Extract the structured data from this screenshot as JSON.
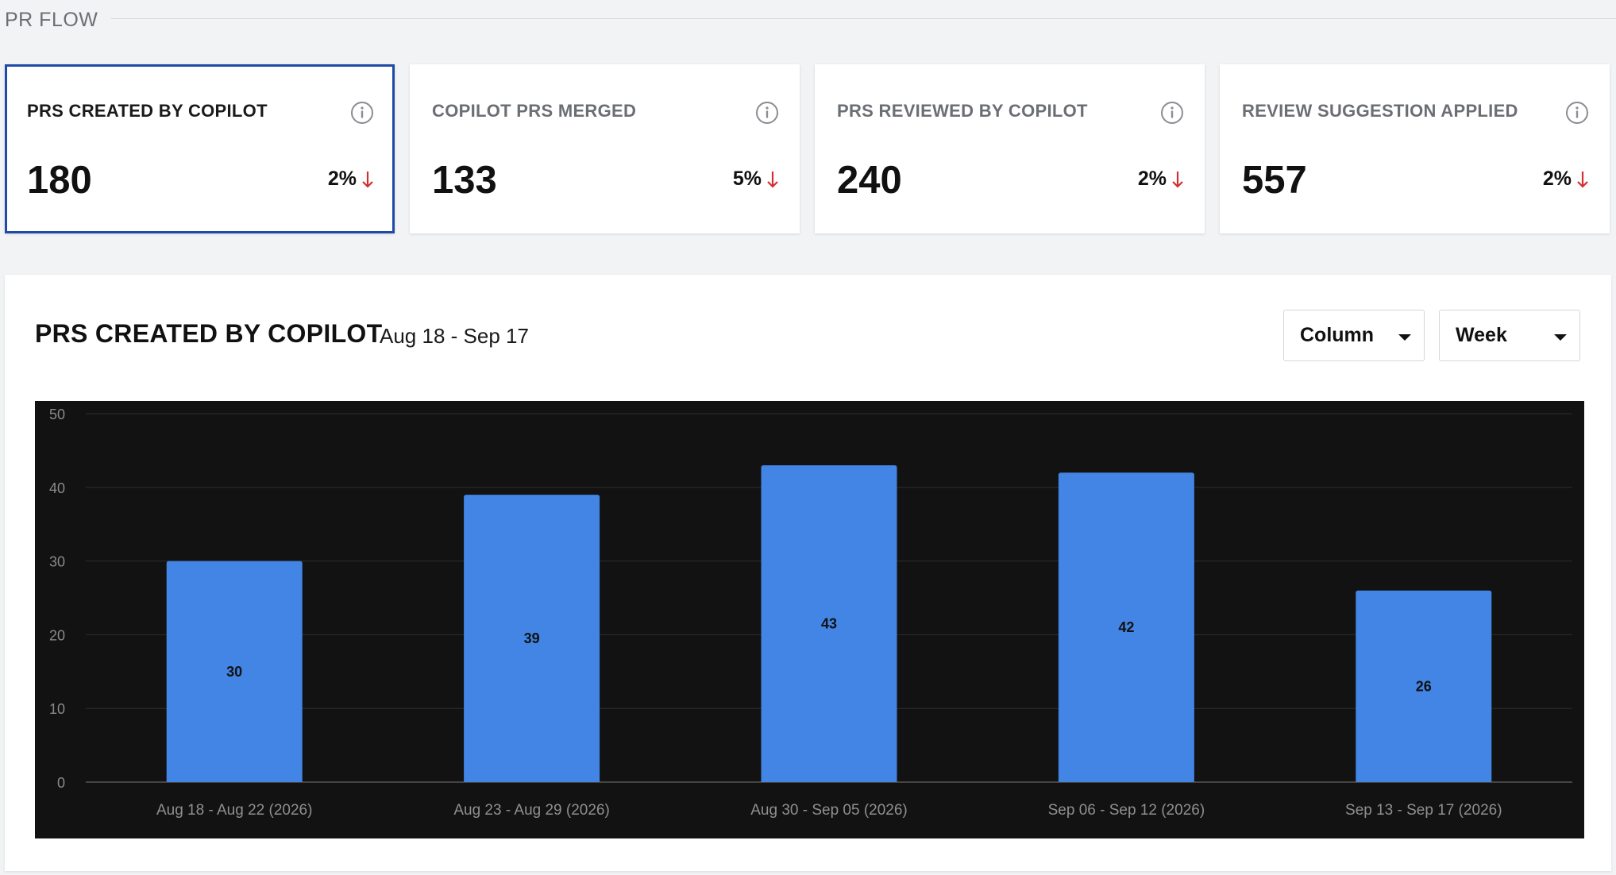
{
  "section": {
    "title": "PR FLOW"
  },
  "kpis": [
    {
      "label": "PRS CREATED BY COPILOT",
      "value": "180",
      "delta": "2%",
      "direction": "down",
      "selected": true
    },
    {
      "label": "COPILOT PRS MERGED",
      "value": "133",
      "delta": "5%",
      "direction": "down",
      "selected": false
    },
    {
      "label": "PRS REVIEWED BY COPILOT",
      "value": "240",
      "delta": "2%",
      "direction": "down",
      "selected": false
    },
    {
      "label": "REVIEW SUGGESTION APPLIED",
      "value": "557",
      "delta": "2%",
      "direction": "down",
      "selected": false
    }
  ],
  "panel": {
    "title": "PRS CREATED BY COPILOT",
    "range": "Aug 18 - Sep 17",
    "chart_type_select": "Column",
    "interval_select": "Week"
  },
  "colors": {
    "accent": "#1f4aa8",
    "bar": "#4285e4",
    "down": "#d32f2f",
    "chart_bg": "#121212"
  },
  "chart_data": {
    "type": "bar",
    "categories": [
      "Aug 18 - Aug 22 (2026)",
      "Aug 23 - Aug 29 (2026)",
      "Aug 30 - Sep 05 (2026)",
      "Sep 06 - Sep 12 (2026)",
      "Sep 13 - Sep 17 (2026)"
    ],
    "values": [
      30,
      39,
      43,
      42,
      26
    ],
    "title": "",
    "xlabel": "",
    "ylabel": "",
    "ylim": [
      0,
      50
    ],
    "yticks": [
      0,
      10,
      20,
      30,
      40,
      50
    ],
    "grid": true,
    "legend": "none",
    "data_labels": true
  }
}
